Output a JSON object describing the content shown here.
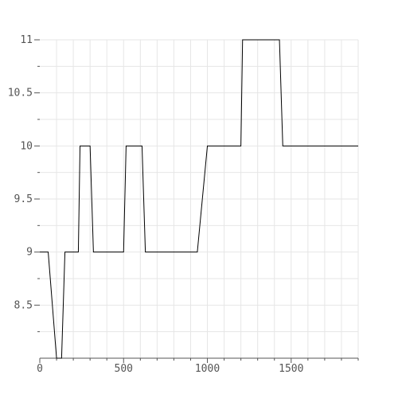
{
  "chart_data": {
    "type": "line",
    "title": "",
    "xlabel": "",
    "ylabel": "",
    "xlim": [
      0,
      1900
    ],
    "ylim": [
      8,
      11
    ],
    "x_ticks": [
      0,
      500,
      1000,
      1500
    ],
    "x_tick_labels": [
      "0",
      "500",
      "1000",
      "1500"
    ],
    "y_ticks": [
      8.5,
      9,
      9.5,
      10,
      10.5,
      11
    ],
    "y_tick_labels": [
      "8.5",
      "9",
      "9.5",
      "10",
      "10.5",
      "11"
    ],
    "grid": true,
    "colors": {
      "line": "#000000",
      "grid": "#e6e6e6",
      "axis": "#555555"
    },
    "series": [
      {
        "x": [
          0,
          50,
          100,
          130,
          150,
          230,
          240,
          300,
          320,
          500,
          515,
          610,
          630,
          940,
          1000,
          1200,
          1210,
          1430,
          1450,
          1900
        ],
        "y": [
          9,
          9,
          8,
          8,
          9,
          9,
          10,
          10,
          9,
          9,
          10,
          10,
          9,
          9,
          10,
          10,
          11,
          11,
          10,
          10
        ]
      }
    ]
  }
}
